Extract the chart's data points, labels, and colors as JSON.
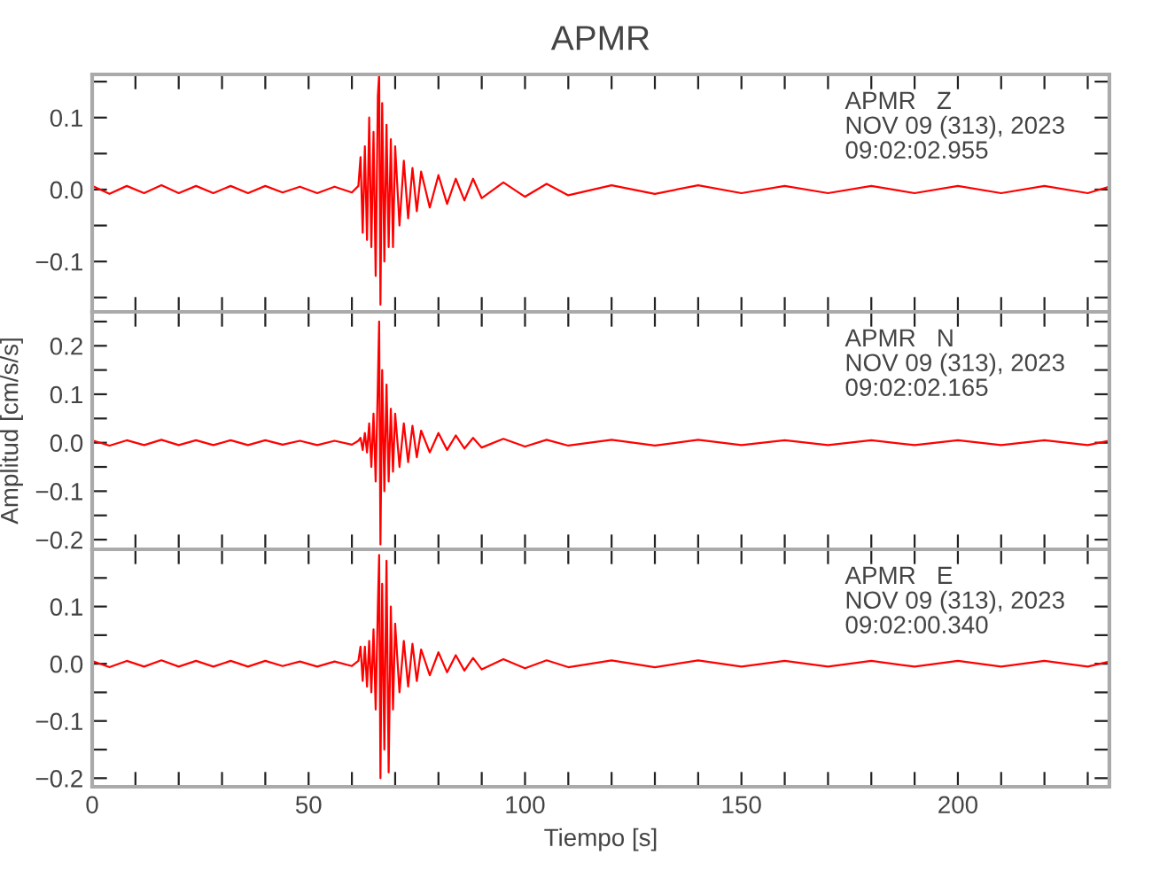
{
  "chart_data": [
    {
      "type": "line",
      "title": "APMR",
      "annotations": [
        "APMR   Z\nNOV 09 (313), 2023\n09:02:02.955"
      ],
      "xlim": [
        0,
        235
      ],
      "ylim": [
        -0.17,
        0.16
      ],
      "tick_labels": "y",
      "legend": false,
      "xticks": [
        {
          "value": 0,
          "label": null
        },
        {
          "value": 10,
          "label": null
        },
        {
          "value": 20,
          "label": null
        },
        {
          "value": 30,
          "label": null
        },
        {
          "value": 40,
          "label": null
        },
        {
          "value": 50,
          "label": null
        },
        {
          "value": 60,
          "label": null
        },
        {
          "value": 70,
          "label": null
        },
        {
          "value": 80,
          "label": null
        },
        {
          "value": 90,
          "label": null
        },
        {
          "value": 100,
          "label": null
        },
        {
          "value": 110,
          "label": null
        },
        {
          "value": 120,
          "label": null
        },
        {
          "value": 130,
          "label": null
        },
        {
          "value": 140,
          "label": null
        },
        {
          "value": 150,
          "label": null
        },
        {
          "value": 160,
          "label": null
        },
        {
          "value": 170,
          "label": null
        },
        {
          "value": 180,
          "label": null
        },
        {
          "value": 190,
          "label": null
        },
        {
          "value": 200,
          "label": null
        },
        {
          "value": 210,
          "label": null
        },
        {
          "value": 220,
          "label": null
        },
        {
          "value": 230,
          "label": null
        }
      ],
      "yticks": [
        {
          "value": -0.15,
          "label": null
        },
        {
          "value": -0.1,
          "label": "−0.1"
        },
        {
          "value": -0.05,
          "label": null
        },
        {
          "value": 0.0,
          "label": "0.0"
        },
        {
          "value": 0.05,
          "label": null
        },
        {
          "value": 0.1,
          "label": "0.1"
        },
        {
          "value": 0.15,
          "label": null
        }
      ],
      "series": [
        {
          "color": "#ff0000",
          "x": [
            0,
            4,
            8,
            12,
            16,
            20,
            24,
            28,
            32,
            36,
            40,
            44,
            48,
            52,
            56,
            60,
            61.5,
            62,
            62.5,
            63,
            63.5,
            64,
            64.5,
            65,
            65.5,
            66,
            66.3,
            66.6,
            67,
            67.5,
            68,
            68.5,
            69,
            69.5,
            70,
            71,
            72,
            73,
            74,
            75,
            76,
            78,
            80,
            82,
            84,
            86,
            88,
            90,
            95,
            100,
            105,
            110,
            120,
            130,
            140,
            150,
            160,
            170,
            180,
            190,
            200,
            210,
            220,
            230,
            235
          ],
          "values": [
            0.005,
            -0.006,
            0.005,
            -0.005,
            0.006,
            -0.005,
            0.005,
            -0.005,
            0.005,
            -0.005,
            0.005,
            -0.004,
            0.004,
            -0.005,
            0.004,
            -0.004,
            0.005,
            0.045,
            -0.06,
            0.06,
            -0.07,
            0.1,
            -0.08,
            0.08,
            -0.12,
            0.13,
            0.16,
            -0.16,
            0.12,
            -0.1,
            0.09,
            -0.08,
            0.07,
            -0.08,
            0.06,
            -0.05,
            0.04,
            -0.04,
            0.03,
            -0.03,
            0.025,
            -0.025,
            0.02,
            -0.02,
            0.015,
            -0.015,
            0.015,
            -0.012,
            0.01,
            -0.01,
            0.008,
            -0.008,
            0.006,
            -0.006,
            0.006,
            -0.005,
            0.005,
            -0.005,
            0.005,
            -0.005,
            0.005,
            -0.005,
            0.005,
            -0.005,
            0.004
          ]
        }
      ]
    },
    {
      "type": "line",
      "ylabel": "Amplitud [cm/s/s]",
      "annotations": [
        "APMR   N\nNOV 09 (313), 2023\n09:02:02.165"
      ],
      "xlim": [
        0,
        235
      ],
      "ylim": [
        -0.22,
        0.27
      ],
      "tick_labels": "y",
      "legend": false,
      "xticks": [
        {
          "value": 0,
          "label": null
        },
        {
          "value": 10,
          "label": null
        },
        {
          "value": 20,
          "label": null
        },
        {
          "value": 30,
          "label": null
        },
        {
          "value": 40,
          "label": null
        },
        {
          "value": 50,
          "label": null
        },
        {
          "value": 60,
          "label": null
        },
        {
          "value": 70,
          "label": null
        },
        {
          "value": 80,
          "label": null
        },
        {
          "value": 90,
          "label": null
        },
        {
          "value": 100,
          "label": null
        },
        {
          "value": 110,
          "label": null
        },
        {
          "value": 120,
          "label": null
        },
        {
          "value": 130,
          "label": null
        },
        {
          "value": 140,
          "label": null
        },
        {
          "value": 150,
          "label": null
        },
        {
          "value": 160,
          "label": null
        },
        {
          "value": 170,
          "label": null
        },
        {
          "value": 180,
          "label": null
        },
        {
          "value": 190,
          "label": null
        },
        {
          "value": 200,
          "label": null
        },
        {
          "value": 210,
          "label": null
        },
        {
          "value": 220,
          "label": null
        },
        {
          "value": 230,
          "label": null
        }
      ],
      "yticks": [
        {
          "value": -0.2,
          "label": "−0.2"
        },
        {
          "value": -0.15,
          "label": null
        },
        {
          "value": -0.1,
          "label": "−0.1"
        },
        {
          "value": -0.05,
          "label": null
        },
        {
          "value": 0.0,
          "label": "0.0"
        },
        {
          "value": 0.05,
          "label": null
        },
        {
          "value": 0.1,
          "label": "0.1"
        },
        {
          "value": 0.15,
          "label": null
        },
        {
          "value": 0.2,
          "label": "0.2"
        },
        {
          "value": 0.25,
          "label": null
        }
      ],
      "series": [
        {
          "color": "#ff0000",
          "x": [
            0,
            4,
            8,
            12,
            16,
            20,
            24,
            28,
            32,
            36,
            40,
            44,
            48,
            52,
            56,
            60,
            61.5,
            62,
            62.5,
            63,
            63.5,
            64,
            64.5,
            65,
            65.5,
            66,
            66.3,
            66.6,
            67,
            67.5,
            68,
            68.5,
            69,
            69.5,
            70,
            71,
            72,
            73,
            74,
            75,
            76,
            78,
            80,
            82,
            84,
            86,
            88,
            90,
            95,
            100,
            105,
            110,
            120,
            130,
            140,
            150,
            160,
            170,
            180,
            190,
            200,
            210,
            220,
            230,
            235
          ],
          "values": [
            0.005,
            -0.006,
            0.005,
            -0.005,
            0.006,
            -0.005,
            0.005,
            -0.005,
            0.005,
            -0.005,
            0.005,
            -0.004,
            0.004,
            -0.005,
            0.004,
            -0.004,
            0.004,
            0.01,
            -0.015,
            0.02,
            -0.02,
            0.04,
            -0.05,
            0.06,
            -0.08,
            0.12,
            0.25,
            -0.21,
            0.15,
            -0.1,
            0.12,
            -0.08,
            0.07,
            -0.06,
            0.06,
            -0.05,
            0.04,
            -0.04,
            0.035,
            -0.03,
            0.025,
            -0.02,
            0.02,
            -0.015,
            0.015,
            -0.012,
            0.01,
            -0.01,
            0.008,
            -0.008,
            0.006,
            -0.006,
            0.006,
            -0.006,
            0.006,
            -0.005,
            0.005,
            -0.005,
            0.005,
            -0.005,
            0.005,
            -0.005,
            0.005,
            -0.005,
            0.004
          ]
        }
      ]
    },
    {
      "type": "line",
      "xlabel": "Tiempo [s]",
      "annotations": [
        "APMR   E\nNOV 09 (313), 2023\n09:02:00.340"
      ],
      "xlim": [
        0,
        235
      ],
      "ylim": [
        -0.215,
        0.2
      ],
      "legend": false,
      "xticks": [
        {
          "value": 0,
          "label": "0"
        },
        {
          "value": 10,
          "label": null
        },
        {
          "value": 20,
          "label": null
        },
        {
          "value": 30,
          "label": null
        },
        {
          "value": 40,
          "label": null
        },
        {
          "value": 50,
          "label": "50"
        },
        {
          "value": 60,
          "label": null
        },
        {
          "value": 70,
          "label": null
        },
        {
          "value": 80,
          "label": null
        },
        {
          "value": 90,
          "label": null
        },
        {
          "value": 100,
          "label": "100"
        },
        {
          "value": 110,
          "label": null
        },
        {
          "value": 120,
          "label": null
        },
        {
          "value": 130,
          "label": null
        },
        {
          "value": 140,
          "label": null
        },
        {
          "value": 150,
          "label": "150"
        },
        {
          "value": 160,
          "label": null
        },
        {
          "value": 170,
          "label": null
        },
        {
          "value": 180,
          "label": null
        },
        {
          "value": 190,
          "label": null
        },
        {
          "value": 200,
          "label": "200"
        },
        {
          "value": 210,
          "label": null
        },
        {
          "value": 220,
          "label": null
        },
        {
          "value": 230,
          "label": null
        }
      ],
      "yticks": [
        {
          "value": -0.2,
          "label": "−0.2"
        },
        {
          "value": -0.15,
          "label": null
        },
        {
          "value": -0.1,
          "label": "−0.1"
        },
        {
          "value": -0.05,
          "label": null
        },
        {
          "value": 0.0,
          "label": "0.0"
        },
        {
          "value": 0.05,
          "label": null
        },
        {
          "value": 0.1,
          "label": "0.1"
        },
        {
          "value": 0.15,
          "label": null
        }
      ],
      "series": [
        {
          "color": "#ff0000",
          "x": [
            0,
            4,
            8,
            12,
            16,
            20,
            24,
            28,
            32,
            36,
            40,
            44,
            48,
            52,
            56,
            60,
            61.5,
            62,
            62.5,
            63,
            63.5,
            64,
            64.5,
            65,
            65.5,
            66,
            66.3,
            66.6,
            67,
            67.5,
            68,
            68.5,
            69,
            69.5,
            70,
            71,
            72,
            73,
            74,
            75,
            76,
            78,
            80,
            82,
            84,
            86,
            88,
            90,
            95,
            100,
            105,
            110,
            120,
            130,
            140,
            150,
            160,
            170,
            180,
            190,
            200,
            210,
            220,
            230,
            235
          ],
          "values": [
            0.005,
            -0.006,
            0.005,
            -0.005,
            0.006,
            -0.005,
            0.005,
            -0.005,
            0.005,
            -0.005,
            0.005,
            -0.004,
            0.004,
            -0.005,
            0.004,
            -0.004,
            0.005,
            0.03,
            -0.03,
            0.03,
            -0.04,
            0.04,
            -0.05,
            0.06,
            -0.08,
            0.1,
            0.19,
            -0.2,
            0.14,
            -0.15,
            0.18,
            -0.19,
            0.1,
            -0.08,
            0.07,
            -0.05,
            0.04,
            -0.04,
            0.035,
            -0.03,
            0.025,
            -0.02,
            0.02,
            -0.015,
            0.015,
            -0.012,
            0.01,
            -0.01,
            0.008,
            -0.008,
            0.006,
            -0.006,
            0.006,
            -0.006,
            0.006,
            -0.005,
            0.005,
            -0.005,
            0.005,
            -0.005,
            0.005,
            -0.005,
            0.005,
            -0.005,
            0.004
          ]
        }
      ]
    }
  ]
}
